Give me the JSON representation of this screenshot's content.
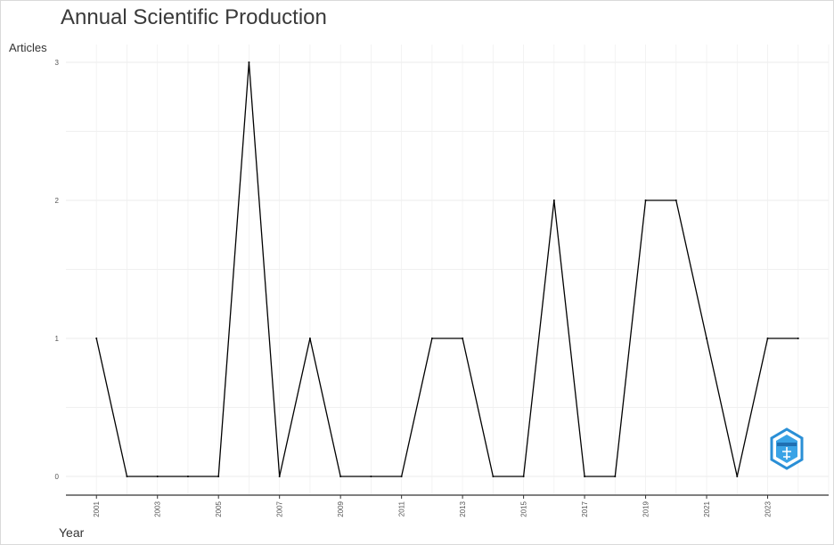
{
  "chart_data": {
    "type": "line",
    "title": "Annual Scientific Production",
    "xlabel": "Year",
    "ylabel": "Articles",
    "x": [
      2001,
      2002,
      2003,
      2004,
      2005,
      2006,
      2007,
      2008,
      2009,
      2010,
      2011,
      2012,
      2013,
      2014,
      2015,
      2016,
      2017,
      2018,
      2019,
      2020,
      2021,
      2022,
      2023,
      2024
    ],
    "y": [
      1,
      0,
      0,
      0,
      0,
      3,
      0,
      1,
      0,
      0,
      0,
      1,
      1,
      0,
      0,
      2,
      0,
      0,
      2,
      2,
      1,
      0,
      1,
      1
    ],
    "xticks": [
      "2001",
      "2003",
      "2005",
      "2007",
      "2009",
      "2011",
      "2013",
      "2015",
      "2017",
      "2019",
      "2021",
      "2023"
    ],
    "yticks": [
      "0",
      "1",
      "2",
      "3"
    ],
    "ylim": [
      0,
      3
    ],
    "xlim": [
      2000,
      2025
    ],
    "grid": true,
    "line_color": "#000000"
  }
}
